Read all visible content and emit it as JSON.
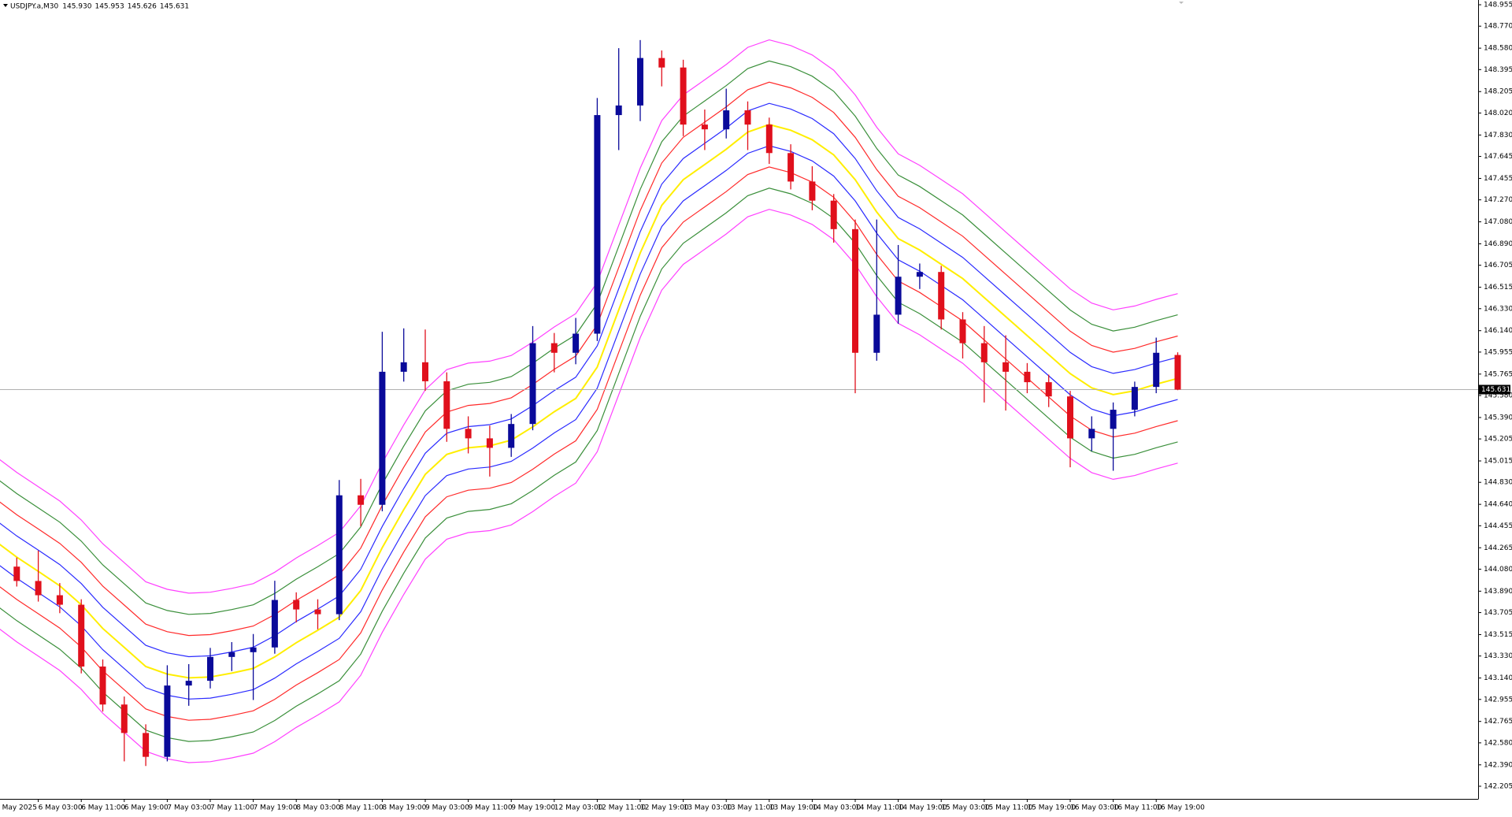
{
  "chart_data": {
    "type": "candlestick",
    "title": "USDJPY.a,M30",
    "header_quote": [
      {
        "value": 145.93,
        "label": "145.930"
      },
      145.953,
      145.626,
      145.631
    ],
    "current_price": {
      "value": 145.631,
      "label": "145.631"
    },
    "up_color": "#0a0a9a",
    "down_color": "#e0101c",
    "categories": [
      "5 May 2025",
      null,
      "6 May 03:00",
      null,
      "6 May 11:00",
      null,
      "6 May 19:00",
      null,
      "7 May 03:00",
      null,
      "7 May 11:00",
      null,
      "7 May 19:00",
      null,
      "8 May 03:00",
      null,
      "8 May 11:00",
      null,
      "8 May 19:00",
      null,
      "9 May 03:00",
      null,
      "9 May 11:00",
      null,
      "9 May 19:00",
      null,
      "12 May 03:00",
      null,
      "12 May 11:00",
      null,
      "12 May 19:00",
      null,
      "13 May 03:00",
      null,
      "13 May 11:00",
      null,
      "13 May 19:00",
      null,
      "14 May 03:00",
      null,
      "14 May 11:00",
      null,
      "14 May 19:00",
      null,
      "15 May 03:00",
      null,
      "15 May 11:00",
      null,
      "15 May 19:00",
      null,
      "16 May 03:00",
      null,
      "16 May 11:00",
      null,
      "16 May 19:00",
      null
    ],
    "open": [
      144.2,
      144.102,
      143.978,
      143.855,
      143.773,
      143.239,
      142.911,
      142.665,
      142.459,
      143.075,
      143.116,
      143.322,
      143.363,
      143.404,
      143.814,
      143.732,
      143.691,
      144.718,
      144.636,
      145.785,
      145.867,
      145.703,
      145.292,
      145.21,
      145.128,
      145.334,
      146.032,
      145.949,
      146.114,
      148.002,
      148.085,
      148.495,
      148.413,
      147.92,
      147.879,
      148.043,
      147.92,
      147.674,
      147.428,
      147.263,
      147.017,
      145.949,
      146.278,
      146.606,
      146.647,
      146.237,
      146.032,
      145.867,
      145.785,
      145.695,
      145.572,
      145.21,
      145.292,
      145.457,
      145.654,
      145.93
    ],
    "high": [
      144.26,
      144.18,
      144.24,
      143.96,
      143.82,
      143.3,
      142.98,
      142.74,
      143.25,
      143.26,
      143.4,
      143.45,
      143.52,
      143.98,
      143.88,
      143.82,
      144.85,
      144.86,
      146.13,
      146.16,
      146.15,
      145.78,
      145.4,
      145.32,
      145.42,
      146.18,
      146.12,
      146.25,
      148.15,
      148.58,
      148.65,
      148.56,
      148.48,
      148.05,
      148.23,
      148.12,
      147.98,
      147.75,
      147.56,
      147.32,
      147.1,
      147.1,
      146.88,
      146.72,
      146.7,
      146.3,
      146.18,
      146.1,
      145.86,
      145.76,
      145.62,
      145.4,
      145.52,
      145.7,
      146.08,
      145.953
    ],
    "low": [
      144.05,
      143.93,
      143.8,
      143.7,
      143.18,
      142.85,
      142.42,
      142.38,
      142.42,
      142.9,
      143.05,
      143.2,
      142.95,
      143.35,
      143.62,
      143.56,
      143.64,
      144.45,
      144.58,
      145.7,
      145.62,
      145.18,
      145.08,
      144.88,
      145.05,
      145.28,
      145.78,
      145.85,
      146.05,
      147.7,
      147.95,
      148.25,
      147.82,
      147.7,
      147.8,
      147.7,
      147.58,
      147.36,
      147.18,
      146.9,
      145.6,
      145.88,
      146.2,
      146.5,
      146.15,
      145.9,
      145.52,
      145.45,
      145.6,
      145.48,
      144.96,
      145.1,
      144.93,
      145.4,
      145.6,
      145.626
    ],
    "close": [
      144.102,
      143.978,
      143.855,
      143.773,
      143.239,
      142.911,
      142.665,
      142.459,
      143.075,
      143.116,
      143.322,
      143.363,
      143.404,
      143.814,
      143.732,
      143.691,
      144.718,
      144.636,
      145.785,
      145.867,
      145.703,
      145.292,
      145.21,
      145.128,
      145.334,
      146.032,
      145.949,
      146.114,
      148.002,
      148.085,
      148.495,
      148.413,
      147.92,
      147.879,
      148.043,
      147.92,
      147.674,
      147.428,
      147.263,
      147.017,
      145.949,
      146.278,
      146.606,
      146.647,
      146.237,
      146.032,
      145.867,
      145.785,
      145.695,
      145.572,
      145.21,
      145.292,
      145.457,
      145.654,
      145.949,
      145.631
    ],
    "envelopes": {
      "center": {
        "color": "#ffee00",
        "values": [
          144.323,
          144.184,
          144.061,
          143.937,
          143.773,
          143.568,
          143.404,
          143.239,
          143.174,
          143.141,
          143.149,
          143.182,
          143.223,
          143.322,
          143.445,
          143.552,
          143.666,
          143.896,
          144.266,
          144.594,
          144.898,
          145.071,
          145.128,
          145.145,
          145.194,
          145.309,
          145.44,
          145.555,
          145.826,
          146.319,
          146.812,
          147.222,
          147.444,
          147.575,
          147.707,
          147.855,
          147.92,
          147.871,
          147.789,
          147.658,
          147.444,
          147.165,
          146.935,
          146.836,
          146.713,
          146.59,
          146.426,
          146.261,
          146.097,
          145.933,
          145.769,
          145.646,
          145.588,
          145.621,
          145.678,
          145.728
        ]
      },
      "bands": [
        {
          "color": "#ff40ff",
          "offset": 0.732
        },
        {
          "color": "#3a8f3a",
          "offset": 0.549
        },
        {
          "color": "#ff2a2a",
          "offset": 0.366
        },
        {
          "color": "#2a2aff",
          "offset": 0.183
        },
        {
          "color": "#2a2aff",
          "offset": -0.183
        },
        {
          "color": "#ff2a2a",
          "offset": -0.366
        },
        {
          "color": "#3a8f3a",
          "offset": -0.549
        },
        {
          "color": "#ff40ff",
          "offset": -0.732
        }
      ]
    },
    "ylim": [
      142.096,
      148.996
    ],
    "yticks": [
      148.955,
      {
        "value": 148.77,
        "label": "148.770"
      },
      {
        "value": 148.58,
        "label": "148.580"
      },
      148.395,
      148.205,
      {
        "value": 148.02,
        "label": "148.020"
      },
      {
        "value": 147.83,
        "label": "147.830"
      },
      147.645,
      147.455,
      {
        "value": 147.27,
        "label": "147.270"
      },
      {
        "value": 147.08,
        "label": "147.080"
      },
      {
        "value": 146.89,
        "label": "146.890"
      },
      146.705,
      146.515,
      {
        "value": 146.33,
        "label": "146.330"
      },
      {
        "value": 146.14,
        "label": "146.140"
      },
      145.955,
      145.765,
      {
        "value": 145.58,
        "label": "145.580"
      },
      {
        "value": 145.39,
        "label": "145.390"
      },
      145.205,
      145.015,
      {
        "value": 144.83,
        "label": "144.830"
      },
      {
        "value": 144.64,
        "label": "144.640"
      },
      144.455,
      144.265,
      {
        "value": 144.08,
        "label": "144.080"
      },
      {
        "value": 143.89,
        "label": "143.890"
      },
      143.705,
      143.515,
      {
        "value": 143.33,
        "label": "143.330"
      },
      {
        "value": 143.14,
        "label": "143.140"
      },
      142.955,
      142.765,
      {
        "value": 142.58,
        "label": "142.580"
      },
      {
        "value": 142.39,
        "label": "142.390"
      },
      142.205
    ],
    "grid": false
  }
}
